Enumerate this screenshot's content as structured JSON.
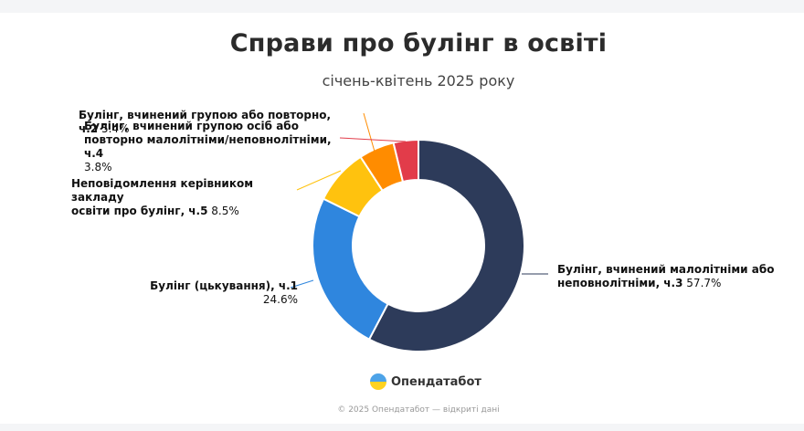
{
  "header": {
    "title": "Справи про булінг в освіті",
    "subtitle": "січень-квітень 2025 року"
  },
  "colors": {
    "minors": "#2d3b5a",
    "cyber": "#2f86de",
    "notify": "#ffc20e",
    "group": "#ff8c00",
    "minors_group": "#e23c4a"
  },
  "chart_data": {
    "type": "pie",
    "donut": true,
    "slices": [
      {
        "label": "Булінг, вчинений малолітніми або неповнолітніми, ч.3",
        "label_pct": "57.7%",
        "value": 57.7,
        "color": "#2d3b5a"
      },
      {
        "label": "Булінг (цькування), ч.1",
        "label_pct": "24.6%",
        "value": 24.6,
        "color": "#2f86de"
      },
      {
        "label": "Неповідомлення керівником закладу освіти про булінг, ч.5",
        "label_pct": "8.5%",
        "value": 8.5,
        "color": "#ffc20e"
      },
      {
        "label": "Булінг, вчинений групою або повторно, ч.2",
        "label_pct": "5.4%",
        "value": 5.4,
        "color": "#ff8c00"
      },
      {
        "label": "Булінг, вчинений групою осіб або повторно малолітніми/неповнолітніми, ч.4",
        "label_pct": "3.8%",
        "value": 3.8,
        "color": "#e23c4a"
      }
    ]
  },
  "labels": {
    "minors_a": "Булінг, вчинений малолітніми або",
    "minors_b": "неповнолітніми, ч.3",
    "cyber": "Булінг (цькування), ч.1",
    "notify_a": "Неповідомлення керівником закладу",
    "notify_b": "освіти про булінг, ч.5",
    "group": "Булінг, вчинений групою або повторно, ч.2",
    "mg_a": "Булінг, вчинений групою осіб або",
    "mg_b": "повторно малолітніми/неповнолітніми, ч.4"
  },
  "branding": {
    "logo_text": "Опендатабот",
    "logo_icon": "opendatabot-logo-icon"
  },
  "footer": {
    "text": "© 2025 Опендатабот — відкриті дані"
  }
}
